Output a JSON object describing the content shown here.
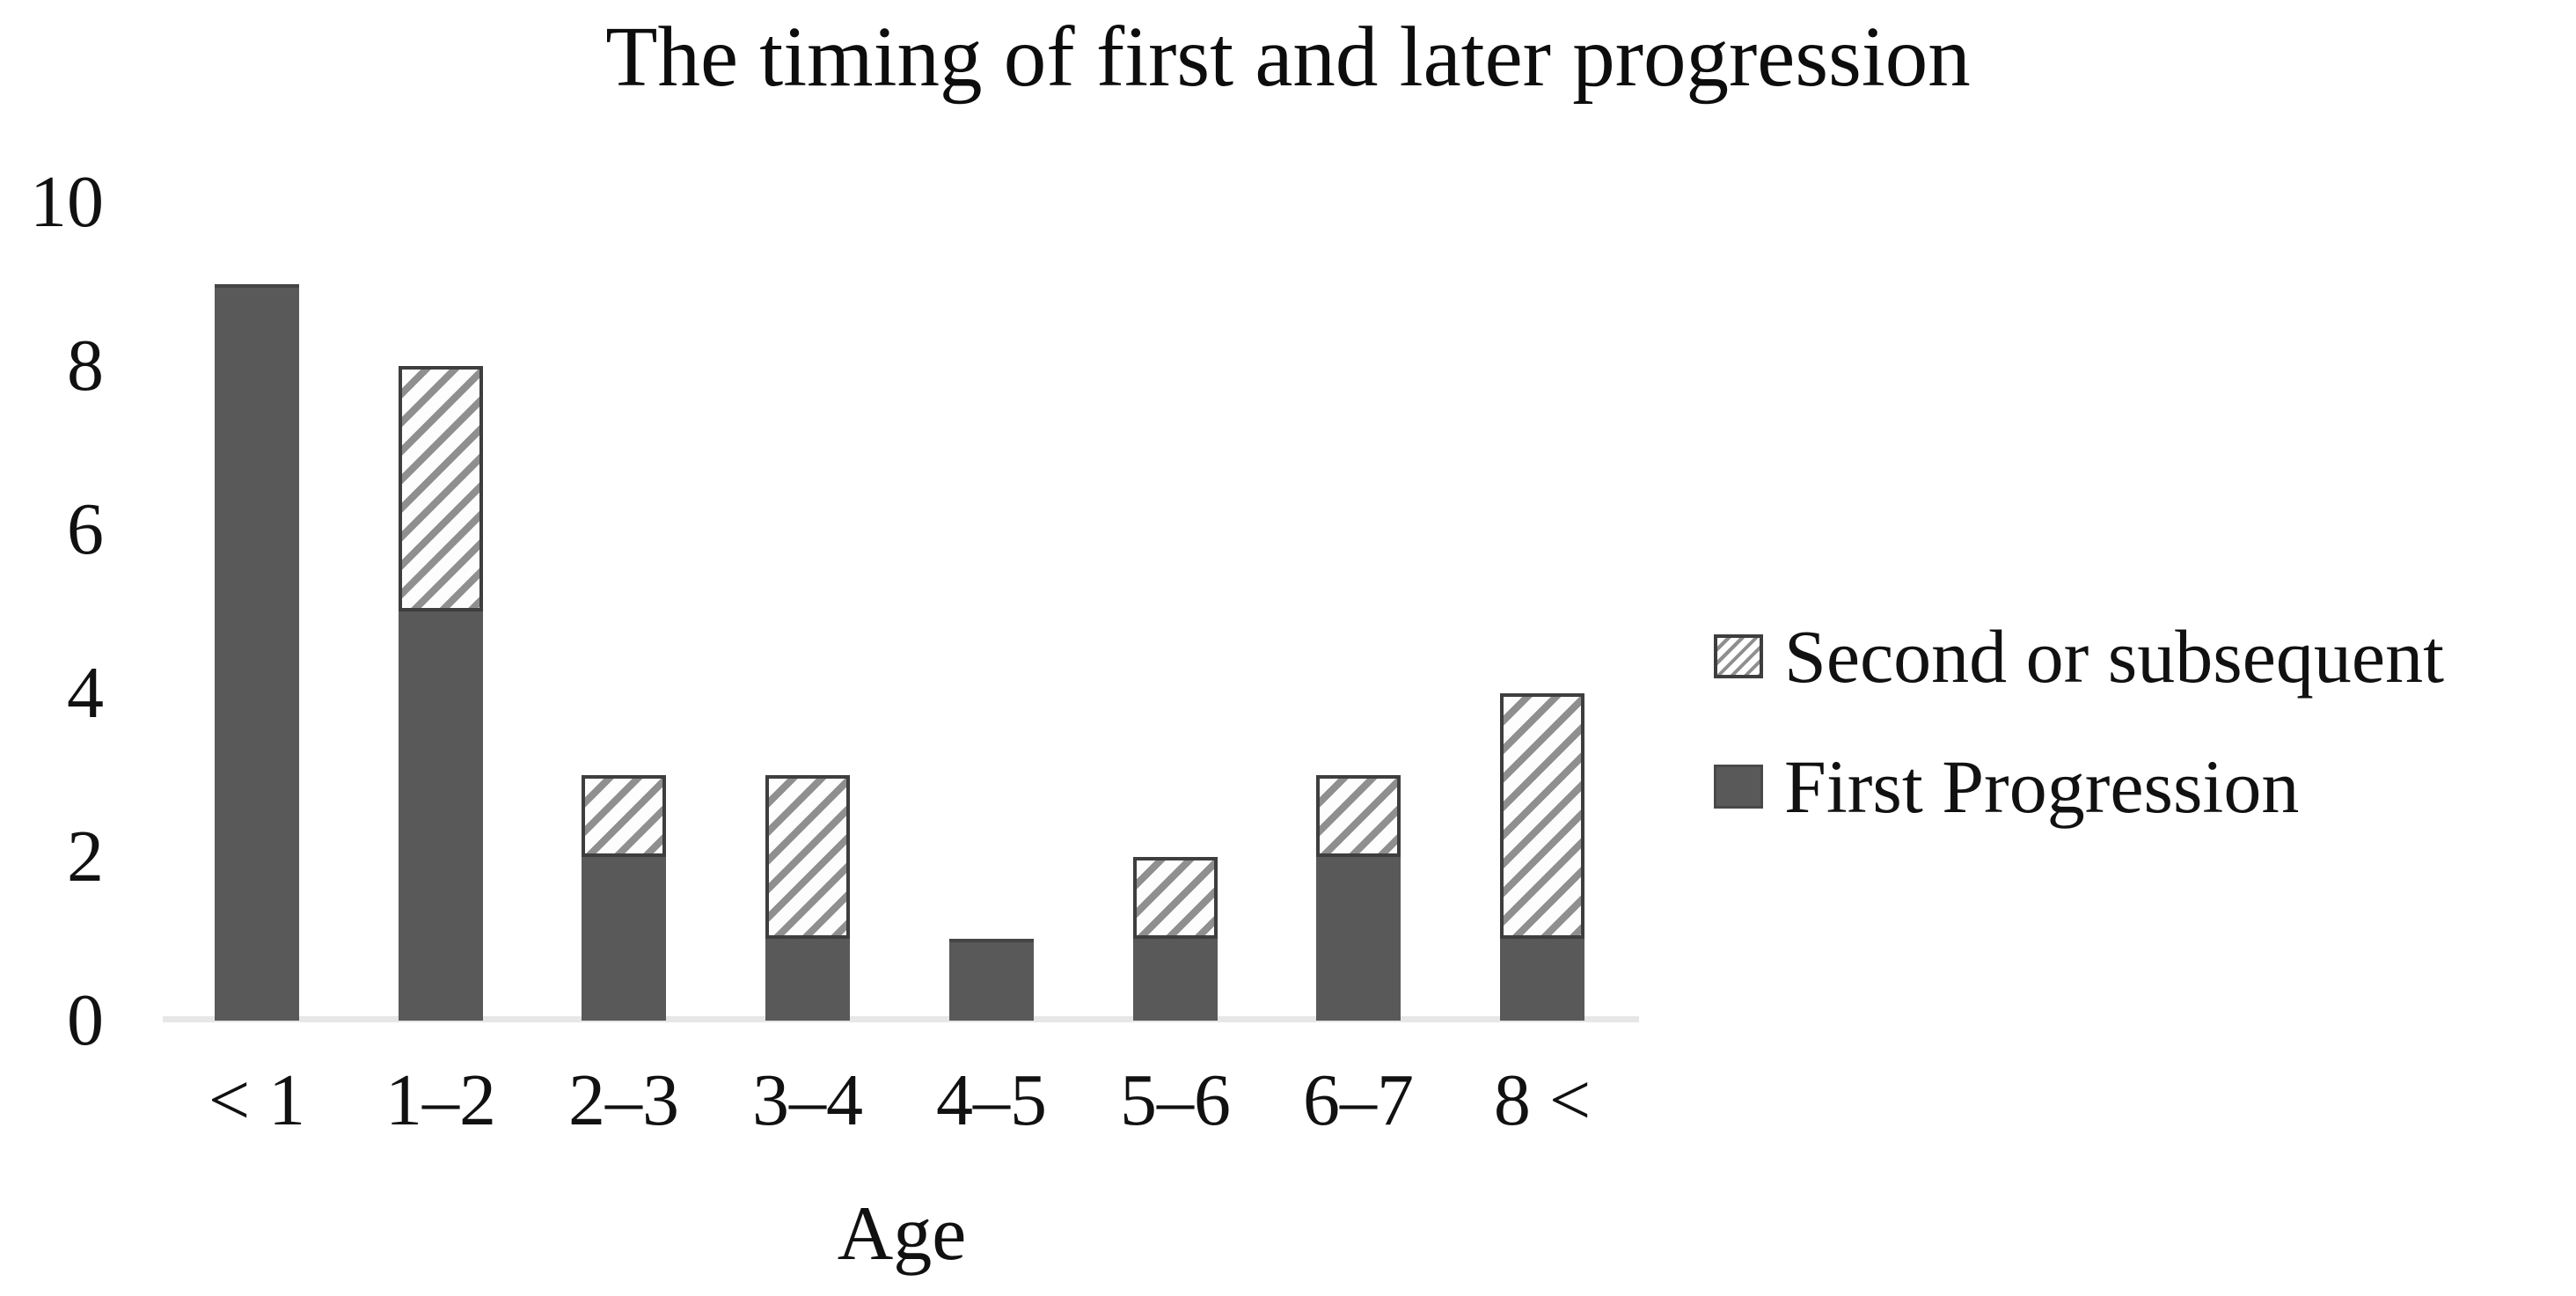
{
  "chart_data": {
    "type": "bar",
    "stacked": true,
    "title": "The timing of first and later progression",
    "xlabel": "Age",
    "ylabel": "",
    "categories": [
      "< 1",
      "1–2",
      "2–3",
      "3–4",
      "4–5",
      "5–6",
      "6–7",
      "8 <"
    ],
    "series": [
      {
        "name": "First Progression",
        "values": [
          9,
          5,
          2,
          1,
          1,
          1,
          2,
          1
        ],
        "pattern": "solid",
        "color": "#595959"
      },
      {
        "name": "Second or subsequent",
        "values": [
          0,
          3,
          1,
          2,
          0,
          1,
          1,
          3
        ],
        "pattern": "diagonal-hatch",
        "color": "#ffffff"
      }
    ],
    "totals": [
      9,
      8,
      3,
      3,
      1,
      2,
      3,
      4
    ],
    "ylim": [
      0,
      10
    ],
    "yticks": [
      0,
      2,
      4,
      6,
      8,
      10
    ],
    "grid": false,
    "legend_position": "right",
    "legend": [
      {
        "label": "Second or subsequent",
        "pattern": "diagonal-hatch"
      },
      {
        "label": "First Progression",
        "pattern": "solid"
      }
    ]
  }
}
